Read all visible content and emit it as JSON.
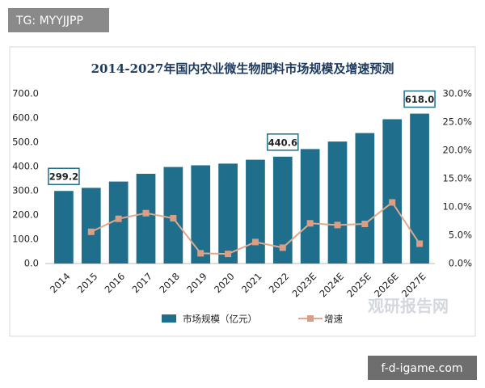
{
  "chart_data": {
    "type": "bar",
    "title": "2014-2027年国内农业微生物肥料市场规模及增速预测",
    "categories": [
      "2014",
      "2015",
      "2016",
      "2017",
      "2018",
      "2019",
      "2020",
      "2021",
      "2022",
      "2023E",
      "2024E",
      "2025E",
      "2026E",
      "2027E"
    ],
    "series": [
      {
        "name": "市场规模（亿元）",
        "type": "bar",
        "color": "#1f6e8c",
        "values": [
          299.2,
          312,
          338,
          370,
          398,
          405,
          412,
          428,
          440.6,
          472,
          503,
          538,
          595,
          618.0
        ],
        "value_labels": [
          "299.2",
          null,
          null,
          null,
          null,
          null,
          null,
          null,
          "440.6",
          null,
          null,
          null,
          null,
          "618.0"
        ]
      },
      {
        "name": "增速",
        "type": "line",
        "axis": "y2",
        "color": "#e0a88f",
        "values": [
          null,
          5.6,
          7.9,
          8.9,
          8.0,
          1.8,
          1.7,
          3.8,
          2.8,
          7.1,
          6.8,
          7.0,
          10.8,
          3.5
        ]
      }
    ],
    "ylim": [
      0,
      700
    ],
    "yticks": [
      {
        "value": 0,
        "label": "0.0"
      },
      {
        "value": 100,
        "label": "100.0"
      },
      {
        "value": 200,
        "label": "200.0"
      },
      {
        "value": 300,
        "label": "300.0"
      },
      {
        "value": 400,
        "label": "400.0"
      },
      {
        "value": 500,
        "label": "500.0"
      },
      {
        "value": 600,
        "label": "600.0"
      },
      {
        "value": 700,
        "label": "700.0"
      }
    ],
    "y2lim": [
      0,
      30
    ],
    "y2ticks": [
      {
        "value": 0,
        "label": "0.0%"
      },
      {
        "value": 5,
        "label": "5.0%"
      },
      {
        "value": 10,
        "label": "10.0%"
      },
      {
        "value": 15,
        "label": "15.0%"
      },
      {
        "value": 20,
        "label": "20.0%"
      },
      {
        "value": 25,
        "label": "25.0%"
      },
      {
        "value": 30,
        "label": "30.0%"
      }
    ],
    "grid": false,
    "legend": "bottom"
  },
  "overlays": {
    "top_left": "TG: MYYJJPP",
    "bottom_right": "f-d-igame.com",
    "watermark": "观研报告网"
  }
}
